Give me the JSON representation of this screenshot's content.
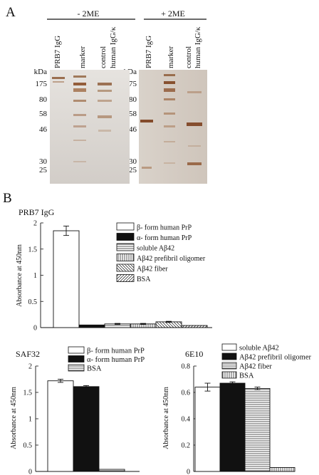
{
  "panelA": {
    "label": "A",
    "condition_left": "- 2ME",
    "condition_right": "+ 2ME",
    "lanes": [
      "PRB7 IgG",
      "marker",
      "control",
      "human IgG/κ"
    ],
    "kda_label": "kDa",
    "kda_markers": [
      "175",
      "80",
      "58",
      "46",
      "30",
      "25"
    ]
  },
  "panelB": {
    "label": "B",
    "chart_data": [
      {
        "type": "bar",
        "title": "PRB7 IgG",
        "ylabel": "Absorbance at 450nm",
        "ylim": [
          0,
          2
        ],
        "yticks": [
          "0",
          "0.5",
          "1",
          "1.5",
          "2"
        ],
        "series": [
          {
            "name": "β- form human PrP",
            "value": 1.85,
            "error": 0.09,
            "pattern": "open"
          },
          {
            "name": "α- form human PrP",
            "value": 0.05,
            "error": 0.0,
            "pattern": "solid"
          },
          {
            "name": "soluble Aβ42",
            "value": 0.07,
            "error": 0.01,
            "pattern": "hlines"
          },
          {
            "name": "Aβ42 prefibril oligomer",
            "value": 0.07,
            "error": 0.01,
            "pattern": "vlines"
          },
          {
            "name": "Aβ42 fiber",
            "value": 0.11,
            "error": 0.01,
            "pattern": "backdiag"
          },
          {
            "name": "BSA",
            "value": 0.04,
            "error": 0.0,
            "pattern": "fwddiag"
          }
        ]
      },
      {
        "type": "bar",
        "title": "SAF32",
        "ylabel": "Absorbance at 450nm",
        "ylim": [
          0,
          2
        ],
        "yticks": [
          "0",
          "0.5",
          "1",
          "1.5",
          "2"
        ],
        "series": [
          {
            "name": "β- form human PrP",
            "value": 1.72,
            "error": 0.03,
            "pattern": "open"
          },
          {
            "name": "α- form human PrP",
            "value": 1.61,
            "error": 0.02,
            "pattern": "solid"
          },
          {
            "name": "BSA",
            "value": 0.04,
            "error": 0.0,
            "pattern": "hlines"
          }
        ]
      },
      {
        "type": "bar",
        "title": "6E10",
        "ylabel": "Absorbance at 450nm",
        "ylim": [
          0,
          0.8
        ],
        "yticks": [
          "0",
          "0.2",
          "0.4",
          "0.6",
          "0.8"
        ],
        "series": [
          {
            "name": "soluble Aβ42",
            "value": 0.64,
            "error": 0.03,
            "pattern": "open"
          },
          {
            "name": "Aβ42 prefibril oligomer",
            "value": 0.67,
            "error": 0.01,
            "pattern": "solid"
          },
          {
            "name": "Aβ42 fiber",
            "value": 0.63,
            "error": 0.01,
            "pattern": "hlines"
          },
          {
            "name": "BSA",
            "value": 0.03,
            "error": 0.0,
            "pattern": "vlines"
          }
        ]
      }
    ]
  },
  "colors": {
    "gel_left_bg": "#dcd8d3",
    "gel_right_bg": "#d6cec6",
    "band": "#9c5f2e",
    "band_dark": "#7c3f1e"
  }
}
